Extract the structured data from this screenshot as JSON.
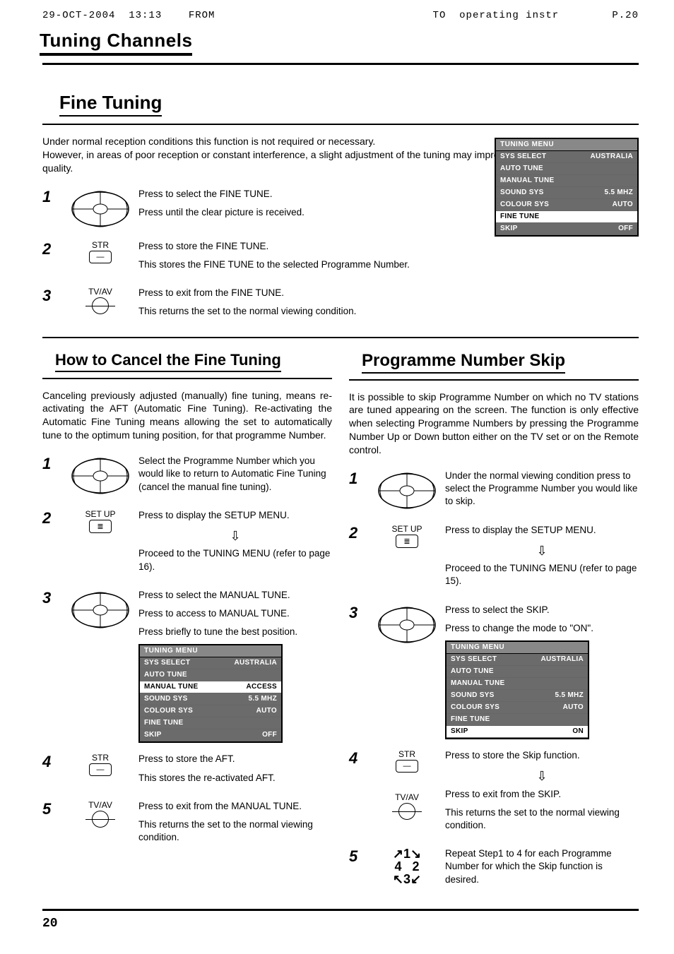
{
  "fax": {
    "left": "29-OCT-2004  13:13    FROM",
    "right": "TO  operating instr        P.20"
  },
  "main_title": "Tuning Channels",
  "fine_tuning": {
    "title": "Fine Tuning",
    "intro1": "Under normal reception conditions this function is not required or necessary.",
    "intro2": "However, in areas of poor reception or constant interference, a slight adjustment of the tuning may improve the picture and sound quality.",
    "steps": [
      {
        "num": "1",
        "icon": "dpad",
        "lines": [
          "Press to select the FINE TUNE.",
          "Press until the clear picture is received."
        ]
      },
      {
        "num": "2",
        "icon": "str",
        "icon_label": "STR",
        "lines": [
          "Press to store the FINE TUNE.",
          "This stores the FINE TUNE to the selected Programme Number."
        ]
      },
      {
        "num": "3",
        "icon": "circle",
        "icon_label": "TV/AV",
        "lines": [
          "Press to exit from the FINE TUNE.",
          "This returns the set to the normal viewing condition."
        ]
      }
    ],
    "menu": {
      "title": "TUNING MENU",
      "rows": [
        {
          "l": "SYS SELECT",
          "r": "AUSTRALIA",
          "hl": false
        },
        {
          "l": "AUTO TUNE",
          "r": "",
          "hl": false
        },
        {
          "l": "MANUAL TUNE",
          "r": "",
          "hl": false
        },
        {
          "l": "SOUND SYS",
          "r": "5.5 MHZ",
          "hl": false
        },
        {
          "l": "COLOUR SYS",
          "r": "AUTO",
          "hl": false
        },
        {
          "l": "FINE TUNE",
          "r": "",
          "hl": true
        },
        {
          "l": "SKIP",
          "r": "OFF",
          "hl": false
        }
      ]
    }
  },
  "cancel": {
    "title": "How to Cancel the Fine Tuning",
    "intro": "Canceling previously adjusted (manually) fine tuning, means re-activating the AFT (Automatic Fine Tuning). Re-activating the Automatic Fine Tuning means allowing the set to automatically tune to the optimum tuning position, for that programme Number.",
    "steps": [
      {
        "num": "1",
        "icon": "dpad",
        "lines": [
          "Select the Programme Number which you would like to return to Automatic Fine Tuning (cancel the manual fine tuning)."
        ]
      },
      {
        "num": "2",
        "icon": "setup",
        "icon_label": "SET UP",
        "lines": [
          "Press to display the SETUP MENU."
        ],
        "arrow_after": true,
        "lines2": [
          "Proceed to the TUNING MENU (refer to page 16)."
        ]
      },
      {
        "num": "3",
        "icon": "dpad",
        "lines": [
          "Press to select the MANUAL TUNE.",
          "Press to access to MANUAL TUNE.",
          "Press briefly to tune the best position."
        ],
        "menu": {
          "title": "TUNING MENU",
          "rows": [
            {
              "l": "SYS SELECT",
              "r": "AUSTRALIA",
              "hl": false
            },
            {
              "l": "AUTO TUNE",
              "r": "",
              "hl": false
            },
            {
              "l": "MANUAL TUNE",
              "r": "ACCESS",
              "hl": true
            },
            {
              "l": "SOUND SYS",
              "r": "5.5 MHZ",
              "hl": false
            },
            {
              "l": "COLOUR SYS",
              "r": "AUTO",
              "hl": false
            },
            {
              "l": "FINE TUNE",
              "r": "",
              "hl": false
            },
            {
              "l": "SKIP",
              "r": "OFF",
              "hl": false
            }
          ]
        }
      },
      {
        "num": "4",
        "icon": "str",
        "icon_label": "STR",
        "lines": [
          "Press to store the AFT.",
          "This stores the re-activated AFT."
        ]
      },
      {
        "num": "5",
        "icon": "circle",
        "icon_label": "TV/AV",
        "lines": [
          "Press to exit from the MANUAL TUNE.",
          "This returns the set to the normal viewing condition."
        ]
      }
    ]
  },
  "skip": {
    "title": "Programme Number Skip",
    "intro": "It is possible to skip Programme Number on which no TV stations are tuned appearing on the screen. The function is only effective when selecting Programme Numbers by pressing the Programme Number Up or Down button either on the TV set or on the Remote control.",
    "steps": [
      {
        "num": "1",
        "icon": "dpad",
        "lines": [
          "Under the normal viewing condition press to select the Programme Number you would like to skip."
        ]
      },
      {
        "num": "2",
        "icon": "setup",
        "icon_label": "SET UP",
        "lines": [
          "Press to display the SETUP MENU."
        ],
        "arrow_after": true,
        "lines2": [
          "Proceed to the TUNING MENU (refer to page 15)."
        ]
      },
      {
        "num": "3",
        "icon": "dpad",
        "lines": [
          "Press to select the SKIP.",
          "Press to change the mode to \"ON\"."
        ],
        "menu": {
          "title": "TUNING MENU",
          "rows": [
            {
              "l": "SYS SELECT",
              "r": "AUSTRALIA",
              "hl": false
            },
            {
              "l": "AUTO TUNE",
              "r": "",
              "hl": false
            },
            {
              "l": "MANUAL TUNE",
              "r": "",
              "hl": false
            },
            {
              "l": "SOUND SYS",
              "r": "5.5 MHZ",
              "hl": false
            },
            {
              "l": "COLOUR SYS",
              "r": "AUTO",
              "hl": false
            },
            {
              "l": "FINE TUNE",
              "r": "",
              "hl": false
            },
            {
              "l": "SKIP",
              "r": "ON",
              "hl": true
            }
          ]
        }
      },
      {
        "num": "4",
        "icon": "str+circle",
        "icon_label": "STR",
        "icon_label2": "TV/AV",
        "lines": [
          "Press to store the Skip function."
        ],
        "arrow_after": true,
        "lines2": [
          "Press to exit from  the SKIP.",
          "This returns the set to the normal viewing condition."
        ]
      },
      {
        "num": "5",
        "icon": "repeat",
        "lines": [
          "Repeat Step1 to 4 for each Programme Number for which the Skip function is desired."
        ]
      }
    ]
  },
  "page_number": "20"
}
